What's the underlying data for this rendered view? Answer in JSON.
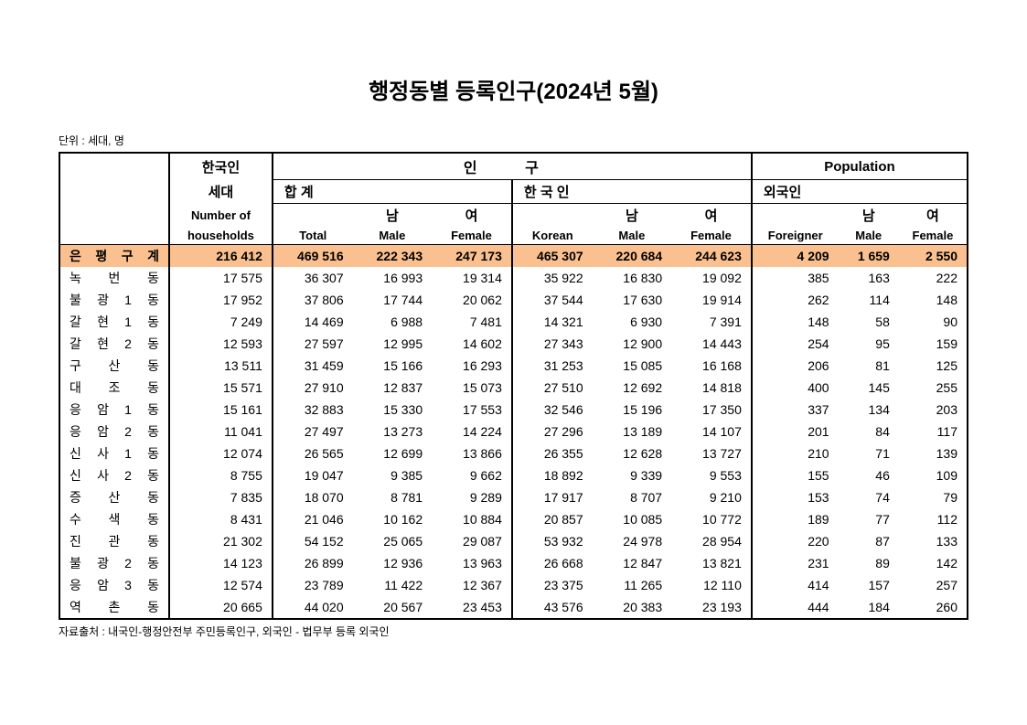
{
  "title": "행정동별 등록인구(2024년 5월)",
  "unit_label": "단위 : 세대, 명",
  "source_label": "자료출처 : 내국인-행정안전부 주민등록인구, 외국인 - 법무부 등록 외국인",
  "headers": {
    "hh_kor": "한국인",
    "hh_kor2": "세대",
    "hh_eng1": "Number of",
    "hh_eng2": "households",
    "pop_kor": "인          구",
    "pop_eng": "Population",
    "total_kor": "합   계",
    "total_eng": "Total",
    "male_kor": "남",
    "male_eng": "Male",
    "female_kor": "여",
    "female_eng": "Female",
    "korean_kor": "한 국 인",
    "korean_eng": "Korean",
    "foreign_kor": "외국인",
    "foreign_eng": "Foreigner"
  },
  "total_row": {
    "name": "은 평 구  계",
    "hh": "216 412",
    "tot": "469 516",
    "tm": "222 343",
    "tf": "247 173",
    "kor": "465 307",
    "km": "220 684",
    "kf": "244 623",
    "for": "4 209",
    "fm": "1 659",
    "ff": "2 550"
  },
  "rows": [
    {
      "name": "녹 번 동",
      "hh": "17 575",
      "tot": "36 307",
      "tm": "16 993",
      "tf": "19 314",
      "kor": "35 922",
      "km": "16 830",
      "kf": "19 092",
      "for": "385",
      "fm": "163",
      "ff": "222"
    },
    {
      "name": "불 광 1 동",
      "hh": "17 952",
      "tot": "37 806",
      "tm": "17 744",
      "tf": "20 062",
      "kor": "37 544",
      "km": "17 630",
      "kf": "19 914",
      "for": "262",
      "fm": "114",
      "ff": "148"
    },
    {
      "name": "갈 현 1 동",
      "hh": "7 249",
      "tot": "14 469",
      "tm": "6 988",
      "tf": "7 481",
      "kor": "14 321",
      "km": "6 930",
      "kf": "7 391",
      "for": "148",
      "fm": "58",
      "ff": "90"
    },
    {
      "name": "갈 현 2 동",
      "hh": "12 593",
      "tot": "27 597",
      "tm": "12 995",
      "tf": "14 602",
      "kor": "27 343",
      "km": "12 900",
      "kf": "14 443",
      "for": "254",
      "fm": "95",
      "ff": "159"
    },
    {
      "name": "구 산 동",
      "hh": "13 511",
      "tot": "31 459",
      "tm": "15 166",
      "tf": "16 293",
      "kor": "31 253",
      "km": "15 085",
      "kf": "16 168",
      "for": "206",
      "fm": "81",
      "ff": "125"
    },
    {
      "name": "대 조 동",
      "hh": "15 571",
      "tot": "27 910",
      "tm": "12 837",
      "tf": "15 073",
      "kor": "27 510",
      "km": "12 692",
      "kf": "14 818",
      "for": "400",
      "fm": "145",
      "ff": "255"
    },
    {
      "name": "응 암 1 동",
      "hh": "15 161",
      "tot": "32 883",
      "tm": "15 330",
      "tf": "17 553",
      "kor": "32 546",
      "km": "15 196",
      "kf": "17 350",
      "for": "337",
      "fm": "134",
      "ff": "203"
    },
    {
      "name": "응 암 2 동",
      "hh": "11 041",
      "tot": "27 497",
      "tm": "13 273",
      "tf": "14 224",
      "kor": "27 296",
      "km": "13 189",
      "kf": "14 107",
      "for": "201",
      "fm": "84",
      "ff": "117"
    },
    {
      "name": "신 사 1 동",
      "hh": "12 074",
      "tot": "26 565",
      "tm": "12 699",
      "tf": "13 866",
      "kor": "26 355",
      "km": "12 628",
      "kf": "13 727",
      "for": "210",
      "fm": "71",
      "ff": "139"
    },
    {
      "name": "신 사 2 동",
      "hh": "8 755",
      "tot": "19 047",
      "tm": "9 385",
      "tf": "9 662",
      "kor": "18 892",
      "km": "9 339",
      "kf": "9 553",
      "for": "155",
      "fm": "46",
      "ff": "109"
    },
    {
      "name": "증 산 동",
      "hh": "7 835",
      "tot": "18 070",
      "tm": "8 781",
      "tf": "9 289",
      "kor": "17 917",
      "km": "8 707",
      "kf": "9 210",
      "for": "153",
      "fm": "74",
      "ff": "79"
    },
    {
      "name": "수 색 동",
      "hh": "8 431",
      "tot": "21 046",
      "tm": "10 162",
      "tf": "10 884",
      "kor": "20 857",
      "km": "10 085",
      "kf": "10 772",
      "for": "189",
      "fm": "77",
      "ff": "112"
    },
    {
      "name": "진 관 동",
      "hh": "21 302",
      "tot": "54 152",
      "tm": "25 065",
      "tf": "29 087",
      "kor": "53 932",
      "km": "24 978",
      "kf": "28 954",
      "for": "220",
      "fm": "87",
      "ff": "133"
    },
    {
      "name": "불 광 2 동",
      "hh": "14 123",
      "tot": "26 899",
      "tm": "12 936",
      "tf": "13 963",
      "kor": "26 668",
      "km": "12 847",
      "kf": "13 821",
      "for": "231",
      "fm": "89",
      "ff": "142"
    },
    {
      "name": "응 암 3 동",
      "hh": "12 574",
      "tot": "23 789",
      "tm": "11 422",
      "tf": "12 367",
      "kor": "23 375",
      "km": "11 265",
      "kf": "12 110",
      "for": "414",
      "fm": "157",
      "ff": "257"
    },
    {
      "name": "역 촌 동",
      "hh": "20 665",
      "tot": "44 020",
      "tm": "20 567",
      "tf": "23 453",
      "kor": "43 576",
      "km": "20 383",
      "kf": "23 193",
      "for": "444",
      "fm": "184",
      "ff": "260"
    }
  ]
}
